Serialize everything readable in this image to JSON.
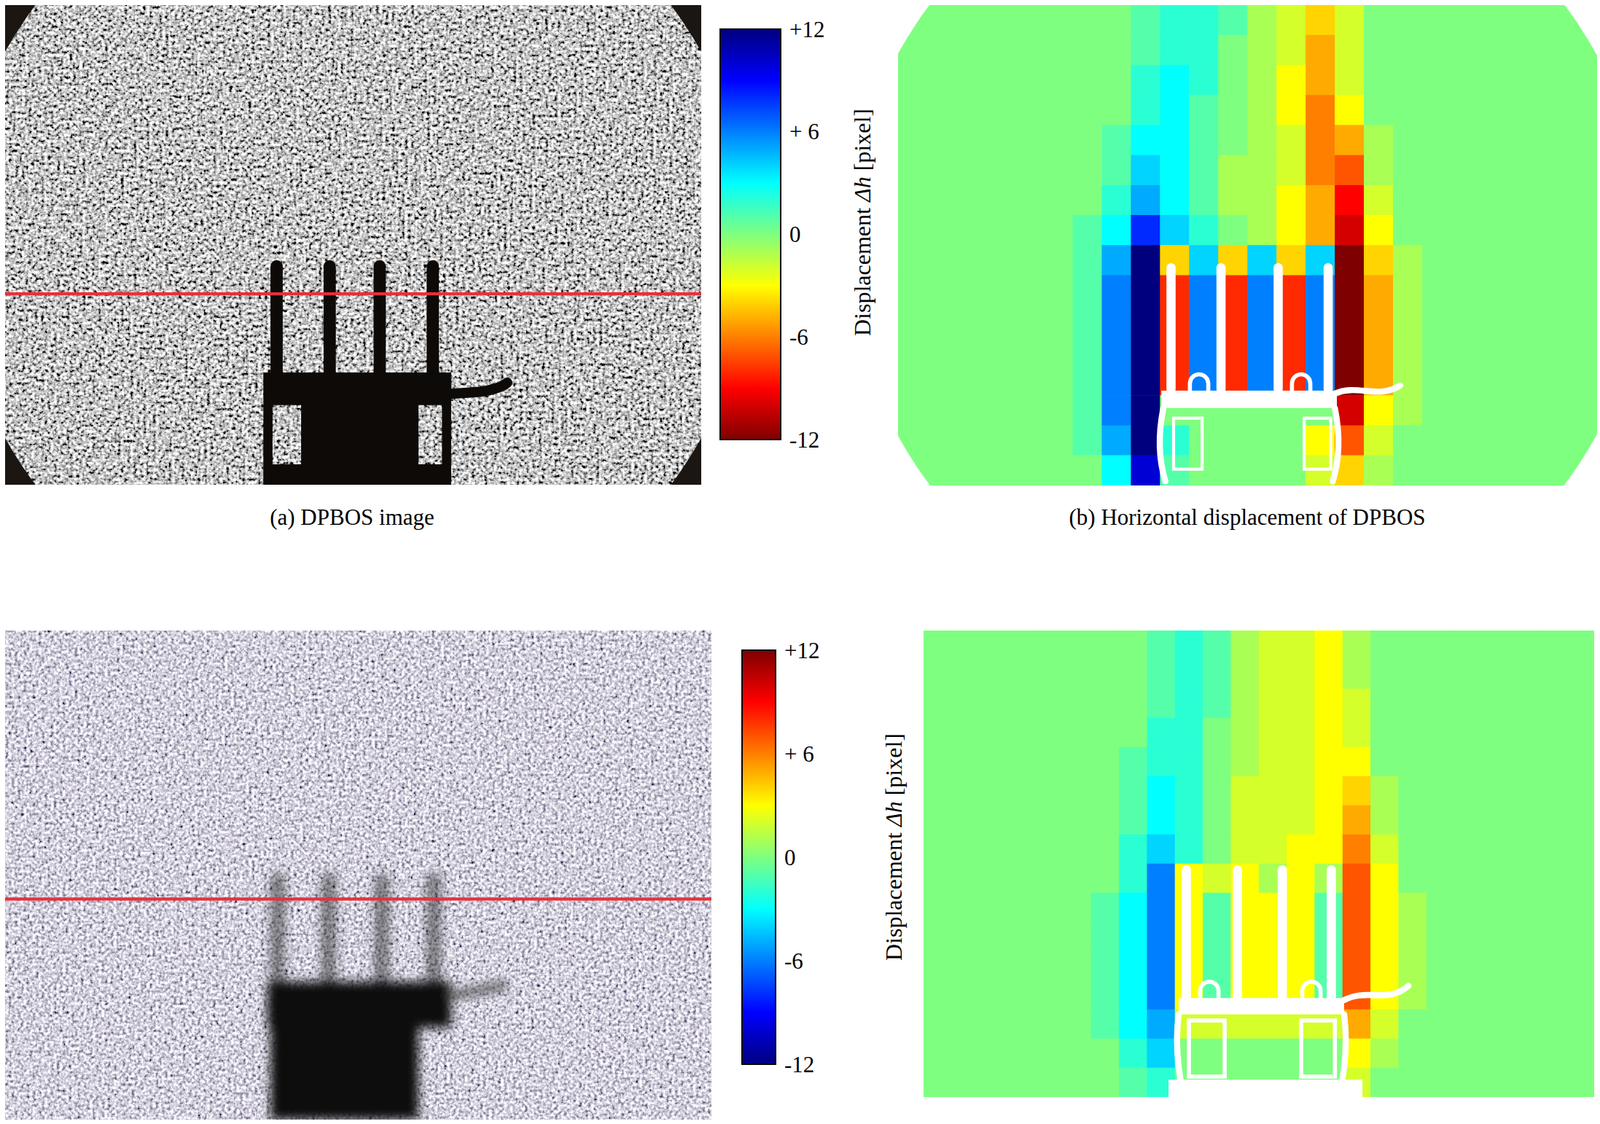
{
  "captions": [
    "(a) DPBOS image",
    "(b) Horizontal displacement of DPBOS"
  ],
  "chart_data": [
    {
      "type": "heatmap",
      "tick_labels": false,
      "colorbar": {
        "title": "Displacement Δh [pixel]",
        "range": [
          -12,
          12
        ],
        "ticks": [
          {
            "value": 12,
            "label": "+12"
          },
          {
            "value": 6,
            "label": "+ 6"
          },
          0,
          -6,
          -12
        ],
        "colors": [
          "#7f0000",
          "#ff0000",
          "#ff7f00",
          "#ffff00",
          "#7fff7f",
          "#00ffff",
          "#007fff",
          "#0000ff",
          "#00007f"
        ]
      },
      "cells": [
        [
          0,
          0,
          0,
          0,
          0,
          0,
          0,
          0,
          1,
          2,
          2,
          1,
          -1,
          -2,
          -4,
          -2,
          0,
          0,
          0,
          0,
          0,
          0,
          0,
          0
        ],
        [
          0,
          0,
          0,
          0,
          0,
          0,
          0,
          0,
          1,
          2,
          2,
          0,
          -1,
          -2,
          -5,
          -2,
          0,
          0,
          0,
          0,
          0,
          0,
          0,
          0
        ],
        [
          0,
          0,
          0,
          0,
          0,
          0,
          0,
          0,
          2,
          3,
          2,
          0,
          -1,
          -3,
          -5,
          -2,
          0,
          0,
          0,
          0,
          0,
          0,
          0,
          0
        ],
        [
          0,
          0,
          0,
          0,
          0,
          0,
          0,
          0,
          2,
          3,
          1,
          0,
          -1,
          -3,
          -6,
          -3,
          0,
          0,
          0,
          0,
          0,
          0,
          0,
          0
        ],
        [
          0,
          0,
          0,
          0,
          0,
          0,
          0,
          1,
          3,
          3,
          1,
          0,
          -1,
          -2,
          -6,
          -5,
          -1,
          0,
          0,
          0,
          0,
          0,
          0,
          0
        ],
        [
          0,
          0,
          0,
          0,
          0,
          0,
          0,
          1,
          4,
          3,
          1,
          -1,
          -1,
          -2,
          -6,
          -7,
          -1,
          0,
          0,
          0,
          0,
          0,
          0,
          0
        ],
        [
          0,
          0,
          0,
          0,
          0,
          0,
          0,
          2,
          5,
          3,
          1,
          -1,
          -1,
          -3,
          -5,
          -9,
          -2,
          0,
          0,
          0,
          0,
          0,
          0,
          0
        ],
        [
          0,
          0,
          0,
          0,
          0,
          0,
          1,
          3,
          8,
          4,
          2,
          0,
          -1,
          -3,
          -5,
          -10,
          -3,
          0,
          0,
          0,
          0,
          0,
          0,
          0
        ],
        [
          0,
          0,
          0,
          0,
          0,
          0,
          1,
          5,
          12,
          -4,
          4,
          -4,
          4,
          -4,
          4,
          -12,
          -4,
          -1,
          0,
          0,
          0,
          0,
          0,
          0
        ],
        [
          0,
          0,
          0,
          0,
          0,
          0,
          1,
          6,
          12,
          -8,
          6,
          -8,
          6,
          -8,
          6,
          -12,
          -5,
          -1,
          0,
          0,
          0,
          0,
          0,
          0
        ],
        [
          0,
          0,
          0,
          0,
          0,
          0,
          1,
          6,
          12,
          -8,
          6,
          -8,
          6,
          -8,
          6,
          -12,
          -5,
          -1,
          0,
          0,
          0,
          0,
          0,
          0
        ],
        [
          0,
          0,
          0,
          0,
          0,
          0,
          1,
          6,
          12,
          -8,
          6,
          -8,
          6,
          -8,
          6,
          -12,
          -5,
          -1,
          0,
          0,
          0,
          0,
          0,
          0
        ],
        [
          0,
          0,
          0,
          0,
          0,
          0,
          1,
          6,
          12,
          -8,
          6,
          -8,
          6,
          -8,
          6,
          -12,
          -5,
          -1,
          0,
          0,
          0,
          0,
          0,
          0
        ],
        [
          0,
          0,
          0,
          0,
          0,
          0,
          1,
          6,
          12,
          0,
          0,
          0,
          0,
          0,
          0,
          -10,
          -3,
          -1,
          0,
          0,
          0,
          0,
          0,
          0
        ],
        [
          0,
          0,
          0,
          0,
          0,
          0,
          1,
          5,
          12,
          2,
          0,
          0,
          0,
          0,
          -3,
          -7,
          -2,
          0,
          0,
          0,
          0,
          0,
          0,
          0
        ],
        [
          0,
          0,
          0,
          0,
          0,
          0,
          0,
          3,
          10,
          1,
          0,
          0,
          0,
          0,
          -2,
          -4,
          -1,
          0,
          0,
          0,
          0,
          0,
          0,
          0
        ]
      ]
    },
    {
      "type": "heatmap",
      "tick_labels": false,
      "colorbar": {
        "title": "Displacement Δh [pixel]",
        "range": [
          -12,
          12
        ],
        "ticks": [
          {
            "value": 12,
            "label": "+12"
          },
          {
            "value": 6,
            "label": "+ 6"
          },
          0,
          -6,
          -12
        ],
        "colors": [
          "#00007f",
          "#0000ff",
          "#007fff",
          "#00ffff",
          "#7fff7f",
          "#ffff00",
          "#ff7f00",
          "#ff0000",
          "#7f0000"
        ]
      },
      "cells": [
        [
          0,
          0,
          0,
          0,
          0,
          0,
          0,
          0,
          -1,
          -2,
          -1,
          1,
          2,
          2,
          3,
          1,
          0,
          0,
          0,
          0,
          0,
          0,
          0,
          0
        ],
        [
          0,
          0,
          0,
          0,
          0,
          0,
          0,
          0,
          -1,
          -2,
          -1,
          1,
          2,
          2,
          3,
          1,
          0,
          0,
          0,
          0,
          0,
          0,
          0,
          0
        ],
        [
          0,
          0,
          0,
          0,
          0,
          0,
          0,
          0,
          -1,
          -2,
          -1,
          1,
          2,
          2,
          3,
          2,
          0,
          0,
          0,
          0,
          0,
          0,
          0,
          0
        ],
        [
          0,
          0,
          0,
          0,
          0,
          0,
          0,
          0,
          -2,
          -2,
          0,
          1,
          2,
          2,
          3,
          2,
          0,
          0,
          0,
          0,
          0,
          0,
          0,
          0
        ],
        [
          0,
          0,
          0,
          0,
          0,
          0,
          0,
          -1,
          -2,
          -2,
          0,
          1,
          2,
          2,
          3,
          3,
          0,
          0,
          0,
          0,
          0,
          0,
          0,
          0
        ],
        [
          0,
          0,
          0,
          0,
          0,
          0,
          0,
          -1,
          -3,
          -2,
          0,
          2,
          2,
          2,
          3,
          4,
          1,
          0,
          0,
          0,
          0,
          0,
          0,
          0
        ],
        [
          0,
          0,
          0,
          0,
          0,
          0,
          0,
          -1,
          -3,
          -2,
          0,
          2,
          2,
          2,
          3,
          5,
          1,
          0,
          0,
          0,
          0,
          0,
          0,
          0
        ],
        [
          0,
          0,
          0,
          0,
          0,
          0,
          0,
          -2,
          -4,
          -2,
          0,
          2,
          2,
          3,
          3,
          6,
          2,
          0,
          0,
          0,
          0,
          0,
          0,
          0
        ],
        [
          0,
          0,
          0,
          0,
          0,
          0,
          0,
          -2,
          -6,
          3,
          2,
          3,
          1,
          3,
          1,
          7,
          3,
          0,
          0,
          0,
          0,
          0,
          0,
          0
        ],
        [
          0,
          0,
          0,
          0,
          0,
          0,
          -1,
          -3,
          -6,
          3,
          -1,
          3,
          3,
          3,
          -1,
          7,
          3,
          1,
          0,
          0,
          0,
          0,
          0,
          0
        ],
        [
          0,
          0,
          0,
          0,
          0,
          0,
          -1,
          -3,
          -6,
          3,
          -1,
          3,
          3,
          3,
          -1,
          7,
          3,
          1,
          0,
          0,
          0,
          0,
          0,
          0
        ],
        [
          0,
          0,
          0,
          0,
          0,
          0,
          -1,
          -3,
          -6,
          3,
          -1,
          3,
          3,
          3,
          -1,
          7,
          3,
          1,
          0,
          0,
          0,
          0,
          0,
          0
        ],
        [
          0,
          0,
          0,
          0,
          0,
          0,
          -1,
          -3,
          -6,
          3,
          -1,
          3,
          3,
          3,
          -1,
          7,
          3,
          1,
          0,
          0,
          0,
          0,
          0,
          0
        ],
        [
          0,
          0,
          0,
          0,
          0,
          0,
          -1,
          -3,
          -5,
          2,
          2,
          2,
          2,
          2,
          2,
          5,
          2,
          0,
          0,
          0,
          0,
          0,
          0,
          0
        ],
        [
          0,
          0,
          0,
          0,
          0,
          0,
          0,
          -2,
          -4,
          0,
          0,
          0,
          0,
          0,
          0,
          3,
          1,
          0,
          0,
          0,
          0,
          0,
          0,
          0
        ],
        [
          0,
          0,
          0,
          0,
          0,
          0,
          0,
          -1,
          -2,
          0,
          0,
          0,
          0,
          0,
          0,
          2,
          0,
          0,
          0,
          0,
          0,
          0,
          0,
          0
        ]
      ]
    }
  ]
}
